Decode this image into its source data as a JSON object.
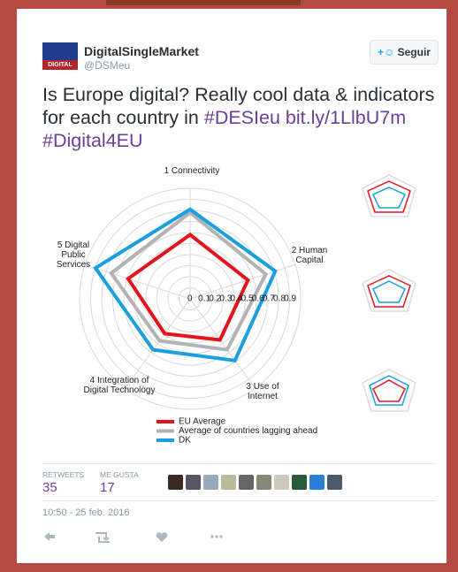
{
  "header": {
    "name": "DigitalSingleMarket",
    "handle": "@DSMeu",
    "follow": "Seguir",
    "logo": "DIGITAL"
  },
  "tweet": {
    "text": "Is Europe digital? Really cool data & indicators for each country in",
    "links": [
      "#DESIeu",
      "bit.ly/1LlbU7m",
      "#Digital4EU"
    ]
  },
  "chart_data": {
    "type": "radar",
    "categories": [
      "1 Connectivity",
      "2 Human Capital",
      "3 Use of Internet",
      "4 Integration of Digital Technology",
      "5 Digital Public Services"
    ],
    "series": [
      {
        "name": "EU Average",
        "color": "#e3151b",
        "values": [
          0.58,
          0.55,
          0.46,
          0.39,
          0.59
        ]
      },
      {
        "name": "Average of countries lagging ahead",
        "color": "#b3b3b3",
        "values": [
          0.78,
          0.72,
          0.57,
          0.47,
          0.75
        ]
      },
      {
        "name": "DK",
        "color": "#1b9fe0",
        "values": [
          0.81,
          0.81,
          0.69,
          0.57,
          0.9
        ]
      }
    ],
    "rlim": [
      0,
      1
    ],
    "rticks": [
      0,
      0.1,
      0.2,
      0.3,
      0.4,
      0.5,
      0.6,
      0.7,
      0.8,
      0.9
    ],
    "grid": true
  },
  "stats": {
    "retweets_label": "RETWEETS",
    "retweets": 35,
    "likes_label": "ME GUSTA",
    "likes": 17
  },
  "timestamp": "10:50 - 25 feb. 2016"
}
